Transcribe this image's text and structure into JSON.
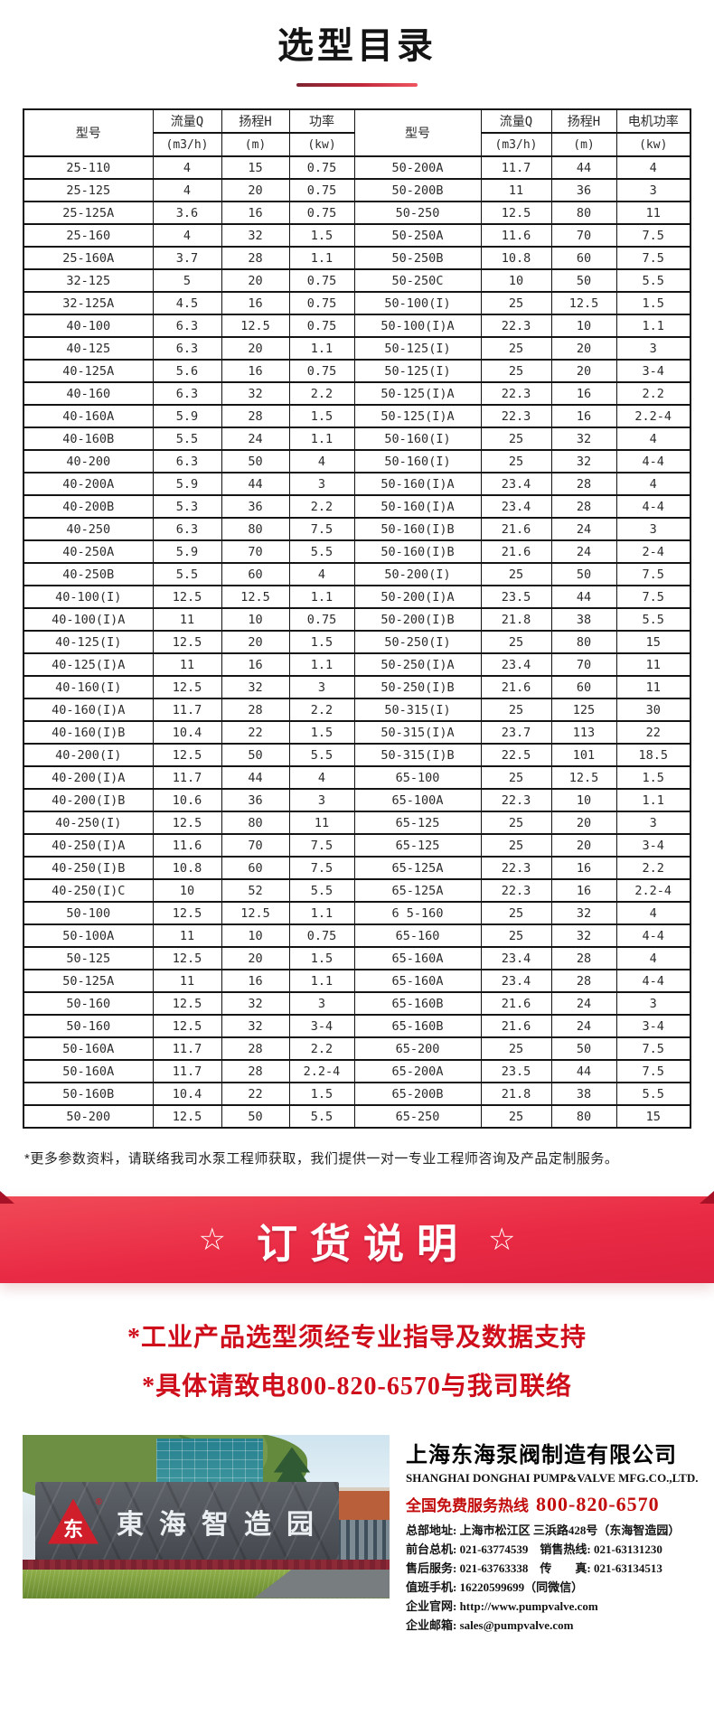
{
  "page": {
    "title": "选型目录"
  },
  "table": {
    "left": {
      "model": "型号",
      "flow": "流量Q",
      "flow_unit": "(m3/h)",
      "head": "扬程H",
      "head_unit": "(m)",
      "power": "功率",
      "power_unit": "(kw)"
    },
    "right": {
      "model": "型号",
      "flow": "流量Q",
      "flow_unit": "(m3/h)",
      "head": "扬程H",
      "head_unit": "(m)",
      "power": "电机功率",
      "power_unit": "(kw)"
    },
    "rows": [
      [
        "25-110",
        "4",
        "15",
        "0.75",
        "50-200A",
        "11.7",
        "44",
        "4"
      ],
      [
        "25-125",
        "4",
        "20",
        "0.75",
        "50-200B",
        "11",
        "36",
        "3"
      ],
      [
        "25-125A",
        "3.6",
        "16",
        "0.75",
        "50-250",
        "12.5",
        "80",
        "11"
      ],
      [
        "25-160",
        "4",
        "32",
        "1.5",
        "50-250A",
        "11.6",
        "70",
        "7.5"
      ],
      [
        "25-160A",
        "3.7",
        "28",
        "1.1",
        "50-250B",
        "10.8",
        "60",
        "7.5"
      ],
      [
        "32-125",
        "5",
        "20",
        "0.75",
        "50-250C",
        "10",
        "50",
        "5.5"
      ],
      [
        "32-125A",
        "4.5",
        "16",
        "0.75",
        "50-100(I)",
        "25",
        "12.5",
        "1.5"
      ],
      [
        "40-100",
        "6.3",
        "12.5",
        "0.75",
        "50-100(I)A",
        "22.3",
        "10",
        "1.1"
      ],
      [
        "40-125",
        "6.3",
        "20",
        "1.1",
        "50-125(I)",
        "25",
        "20",
        "3"
      ],
      [
        "40-125A",
        "5.6",
        "16",
        "0.75",
        "50-125(I)",
        "25",
        "20",
        "3-4"
      ],
      [
        "40-160",
        "6.3",
        "32",
        "2.2",
        "50-125(I)A",
        "22.3",
        "16",
        "2.2"
      ],
      [
        "40-160A",
        "5.9",
        "28",
        "1.5",
        "50-125(I)A",
        "22.3",
        "16",
        "2.2-4"
      ],
      [
        "40-160B",
        "5.5",
        "24",
        "1.1",
        "50-160(I)",
        "25",
        "32",
        "4"
      ],
      [
        "40-200",
        "6.3",
        "50",
        "4",
        "50-160(I)",
        "25",
        "32",
        "4-4"
      ],
      [
        "40-200A",
        "5.9",
        "44",
        "3",
        "50-160(I)A",
        "23.4",
        "28",
        "4"
      ],
      [
        "40-200B",
        "5.3",
        "36",
        "2.2",
        "50-160(I)A",
        "23.4",
        "28",
        "4-4"
      ],
      [
        "40-250",
        "6.3",
        "80",
        "7.5",
        "50-160(I)B",
        "21.6",
        "24",
        "3"
      ],
      [
        "40-250A",
        "5.9",
        "70",
        "5.5",
        "50-160(I)B",
        "21.6",
        "24",
        "2-4"
      ],
      [
        "40-250B",
        "5.5",
        "60",
        "4",
        "50-200(I)",
        "25",
        "50",
        "7.5"
      ],
      [
        "40-100(I)",
        "12.5",
        "12.5",
        "1.1",
        "50-200(I)A",
        "23.5",
        "44",
        "7.5"
      ],
      [
        "40-100(I)A",
        "11",
        "10",
        "0.75",
        "50-200(I)B",
        "21.8",
        "38",
        "5.5"
      ],
      [
        "40-125(I)",
        "12.5",
        "20",
        "1.5",
        "50-250(I)",
        "25",
        "80",
        "15"
      ],
      [
        "40-125(I)A",
        "11",
        "16",
        "1.1",
        "50-250(I)A",
        "23.4",
        "70",
        "11"
      ],
      [
        "40-160(I)",
        "12.5",
        "32",
        "3",
        "50-250(I)B",
        "21.6",
        "60",
        "11"
      ],
      [
        "40-160(I)A",
        "11.7",
        "28",
        "2.2",
        "50-315(I)",
        "25",
        "125",
        "30"
      ],
      [
        "40-160(I)B",
        "10.4",
        "22",
        "1.5",
        "50-315(I)A",
        "23.7",
        "113",
        "22"
      ],
      [
        "40-200(I)",
        "12.5",
        "50",
        "5.5",
        "50-315(I)B",
        "22.5",
        "101",
        "18.5"
      ],
      [
        "40-200(I)A",
        "11.7",
        "44",
        "4",
        "65-100",
        "25",
        "12.5",
        "1.5"
      ],
      [
        "40-200(I)B",
        "10.6",
        "36",
        "3",
        "65-100A",
        "22.3",
        "10",
        "1.1"
      ],
      [
        "40-250(I)",
        "12.5",
        "80",
        "11",
        "65-125",
        "25",
        "20",
        "3"
      ],
      [
        "40-250(I)A",
        "11.6",
        "70",
        "7.5",
        "65-125",
        "25",
        "20",
        "3-4"
      ],
      [
        "40-250(I)B",
        "10.8",
        "60",
        "7.5",
        "65-125A",
        "22.3",
        "16",
        "2.2"
      ],
      [
        "40-250(I)C",
        "10",
        "52",
        "5.5",
        "65-125A",
        "22.3",
        "16",
        "2.2-4"
      ],
      [
        "50-100",
        "12.5",
        "12.5",
        "1.1",
        "6 5-160",
        "25",
        "32",
        "4"
      ],
      [
        "50-100A",
        "11",
        "10",
        "0.75",
        "65-160",
        "25",
        "32",
        "4-4"
      ],
      [
        "50-125",
        "12.5",
        "20",
        "1.5",
        "65-160A",
        "23.4",
        "28",
        "4"
      ],
      [
        "50-125A",
        "11",
        "16",
        "1.1",
        "65-160A",
        "23.4",
        "28",
        "4-4"
      ],
      [
        "50-160",
        "12.5",
        "32",
        "3",
        "65-160B",
        "21.6",
        "24",
        "3"
      ],
      [
        "50-160",
        "12.5",
        "32",
        "3-4",
        "65-160B",
        "21.6",
        "24",
        "3-4"
      ],
      [
        "50-160A",
        "11.7",
        "28",
        "2.2",
        "65-200",
        "25",
        "50",
        "7.5"
      ],
      [
        "50-160A",
        "11.7",
        "28",
        "2.2-4",
        "65-200A",
        "23.5",
        "44",
        "7.5"
      ],
      [
        "50-160B",
        "10.4",
        "22",
        "1.5",
        "65-200B",
        "21.8",
        "38",
        "5.5"
      ],
      [
        "50-200",
        "12.5",
        "50",
        "5.5",
        "65-250",
        "25",
        "80",
        "15"
      ]
    ]
  },
  "footnote": "*更多参数资料，请联络我司水泵工程师获取，我们提供一对一专业工程师咨询及产品定制服务。",
  "order_banner": {
    "star": "☆",
    "title": "订货说明"
  },
  "order_notes": [
    "*工业产品选型须经专业指导及数据支持",
    "*具体请致电800-820-6570与我司联络"
  ],
  "footer": {
    "photo_sign_text": "東海智造园",
    "logo_glyph": "东",
    "logo_reg": "®",
    "company_cn": "上海东海泵阀制造有限公司",
    "company_en": "SHANGHAI DONGHAI PUMP&VALVE MFG.CO.,LTD.",
    "hotline_label": "全国免费服务热线",
    "hotline_number": "800-820-6570",
    "contacts": [
      "总部地址: 上海市松江区 三浜路428号（东海智造园）",
      "前台总机: 021-63774539　销售热线: 021-63131230",
      "售后服务: 021-63763338　传　　真: 021-63134513",
      "值班手机: 16220599699（同微信）",
      "企业官网: http://www.pumpvalve.com",
      "企业邮箱: sales@pumpvalve.com"
    ]
  },
  "colors": {
    "banner_red": "#e92a44",
    "note_red": "#cf0e1c",
    "hotline_red": "#c30d0d",
    "underline_dark": "#7e2430",
    "underline_light": "#ef5560",
    "logo_red": "#d01e2a"
  }
}
